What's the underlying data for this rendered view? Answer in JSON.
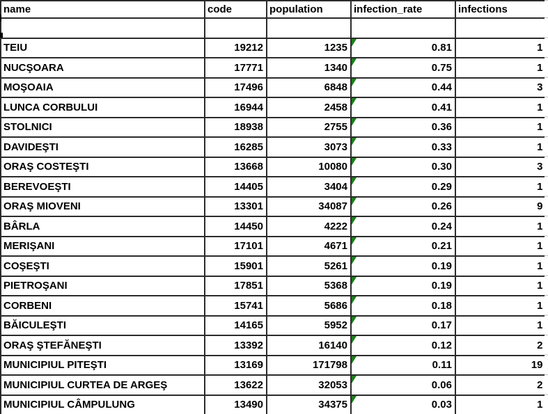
{
  "table": {
    "columns": [
      "name",
      "code",
      "population",
      "infection_rate",
      "infections"
    ],
    "column_keys": [
      "name",
      "code",
      "population",
      "infection_rate",
      "infections"
    ],
    "empty_row_present": true,
    "rows": [
      {
        "name": "TEIU",
        "code": "19212",
        "population": "1235",
        "infection_rate": "0.81",
        "infections": "1",
        "rate_error_indicator": true
      },
      {
        "name": "NUCŞOARA",
        "code": "17771",
        "population": "1340",
        "infection_rate": "0.75",
        "infections": "1",
        "rate_error_indicator": true
      },
      {
        "name": "MOŞOAIA",
        "code": "17496",
        "population": "6848",
        "infection_rate": "0.44",
        "infections": "3",
        "rate_error_indicator": true
      },
      {
        "name": "LUNCA CORBULUI",
        "code": "16944",
        "population": "2458",
        "infection_rate": "0.41",
        "infections": "1",
        "rate_error_indicator": true
      },
      {
        "name": "STOLNICI",
        "code": "18938",
        "population": "2755",
        "infection_rate": "0.36",
        "infections": "1",
        "rate_error_indicator": true
      },
      {
        "name": "DAVIDEŞTI",
        "code": "16285",
        "population": "3073",
        "infection_rate": "0.33",
        "infections": "1",
        "rate_error_indicator": true
      },
      {
        "name": "ORAŞ COSTEŞTI",
        "code": "13668",
        "population": "10080",
        "infection_rate": "0.30",
        "infections": "3",
        "rate_error_indicator": true
      },
      {
        "name": "BEREVOEŞTI",
        "code": "14405",
        "population": "3404",
        "infection_rate": "0.29",
        "infections": "1",
        "rate_error_indicator": true
      },
      {
        "name": "ORAŞ MIOVENI",
        "code": "13301",
        "population": "34087",
        "infection_rate": "0.26",
        "infections": "9",
        "rate_error_indicator": true
      },
      {
        "name": "BÂRLA",
        "code": "14450",
        "population": "4222",
        "infection_rate": "0.24",
        "infections": "1",
        "rate_error_indicator": true
      },
      {
        "name": "MERIŞANI",
        "code": "17101",
        "population": "4671",
        "infection_rate": "0.21",
        "infections": "1",
        "rate_error_indicator": true
      },
      {
        "name": "COŞEŞTI",
        "code": "15901",
        "population": "5261",
        "infection_rate": "0.19",
        "infections": "1",
        "rate_error_indicator": true
      },
      {
        "name": "PIETROŞANI",
        "code": "17851",
        "population": "5368",
        "infection_rate": "0.19",
        "infections": "1",
        "rate_error_indicator": true
      },
      {
        "name": "CORBENI",
        "code": "15741",
        "population": "5686",
        "infection_rate": "0.18",
        "infections": "1",
        "rate_error_indicator": true
      },
      {
        "name": "BĂICULEŞTI",
        "code": "14165",
        "population": "5952",
        "infection_rate": "0.17",
        "infections": "1",
        "rate_error_indicator": true
      },
      {
        "name": "ORAŞ ŞTEFĂNEŞTI",
        "code": "13392",
        "population": "16140",
        "infection_rate": "0.12",
        "infections": "2",
        "rate_error_indicator": true
      },
      {
        "name": "MUNICIPIUL PITEŞTI",
        "code": "13169",
        "population": "171798",
        "infection_rate": "0.11",
        "infections": "19",
        "rate_error_indicator": true
      },
      {
        "name": "MUNICIPIUL CURTEA DE ARGEŞ",
        "code": "13622",
        "population": "32053",
        "infection_rate": "0.06",
        "infections": "2",
        "rate_error_indicator": true
      },
      {
        "name": "MUNICIPIUL CÂMPULUNG",
        "code": "13490",
        "population": "34375",
        "infection_rate": "0.03",
        "infections": "1",
        "rate_error_indicator": true
      }
    ]
  },
  "colors": {
    "cell_border": "#2b2b2b",
    "outer_gridline": "#9e9e9e",
    "error_indicator_green": "#1e7d1e",
    "text": "#000000",
    "background": "#ffffff"
  }
}
